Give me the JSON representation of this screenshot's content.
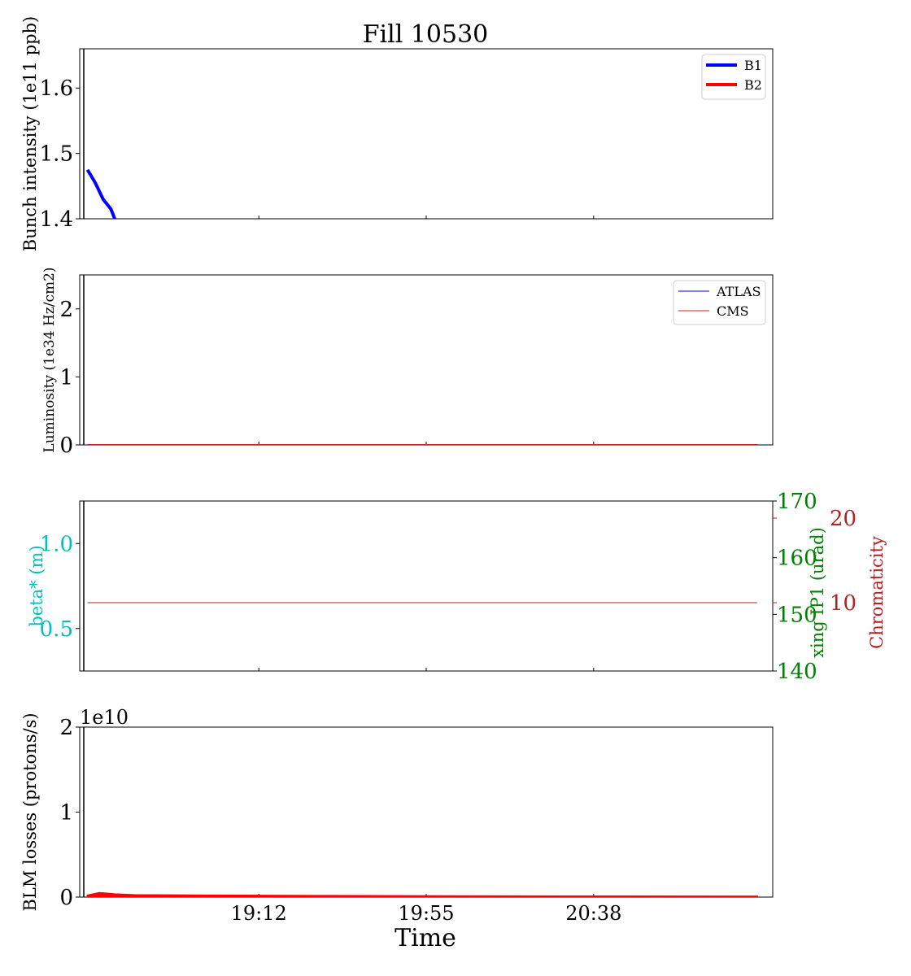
{
  "title": "Fill 10530",
  "xlabel": "Time",
  "x_ticks": [
    "19:12",
    "19:55",
    "20:38"
  ],
  "colors": {
    "b1": "#0000ff",
    "b2": "#ff0000",
    "atlas": "#0000cc",
    "cms": "#cc2222",
    "beta": "#00bfbf",
    "xing": "#008000",
    "chroma": "#b22222"
  },
  "chart_data": [
    {
      "type": "line",
      "panel": "intensity",
      "ylabel": "Bunch intensity (1e11 ppb)",
      "ylim": [
        1.4,
        1.66
      ],
      "y_ticks": [
        "1.4",
        "1.5",
        "1.6"
      ],
      "legend_placement": "top-right",
      "series": [
        {
          "name": "B1",
          "x": [
            "18:28",
            "18:30",
            "18:32",
            "18:34",
            "18:35"
          ],
          "values": [
            1.475,
            1.455,
            1.43,
            1.415,
            1.4
          ]
        },
        {
          "name": "B2",
          "x": [],
          "values": []
        }
      ]
    },
    {
      "type": "line",
      "panel": "luminosity",
      "ylabel": "Luminosity (1e34 Hz/cm2)",
      "ylim": [
        0,
        2.5
      ],
      "y_ticks": [
        "0",
        "1",
        "2"
      ],
      "legend_placement": "top-right",
      "series": [
        {
          "name": "ATLAS",
          "x": [
            "18:28",
            "21:20"
          ],
          "values": [
            0,
            0
          ]
        },
        {
          "name": "CMS",
          "x": [
            "18:28",
            "21:20"
          ],
          "values": [
            0,
            0
          ]
        }
      ]
    },
    {
      "type": "line",
      "panel": "optics",
      "ylabel": "beta* (m)",
      "ylim": [
        0.25,
        1.25
      ],
      "y_ticks": [
        "0.5",
        "1.0"
      ],
      "y2label": "xing IP1 (urad)",
      "y2lim": [
        140,
        170
      ],
      "y2_ticks": [
        "140",
        "150",
        "160",
        "170"
      ],
      "y3label": "Chromaticity",
      "y3_ticks": [
        "10",
        "20"
      ],
      "series": [
        {
          "axis": "chromaticity",
          "x": [
            "18:28",
            "21:20"
          ],
          "values": [
            10,
            10
          ]
        }
      ]
    },
    {
      "type": "area",
      "panel": "losses",
      "ylabel": "BLM losses (protons/s)",
      "ylim": [
        0,
        2
      ],
      "y_offset": "1e10",
      "y_ticks": [
        "0",
        "1",
        "2"
      ],
      "series": [
        {
          "x": [
            "18:28",
            "18:31",
            "18:35",
            "18:40",
            "19:00",
            "19:30",
            "20:00",
            "20:30",
            "21:20"
          ],
          "values": [
            0.02,
            0.05,
            0.035,
            0.025,
            0.02,
            0.015,
            0.012,
            0.01,
            0.008
          ]
        }
      ]
    }
  ]
}
